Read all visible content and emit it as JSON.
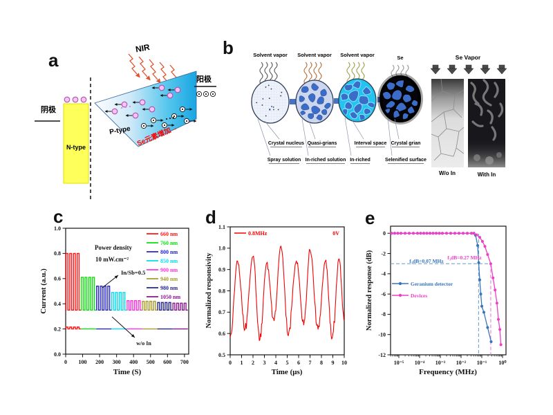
{
  "panel_letters": {
    "a": "a",
    "b": "b",
    "c": "c",
    "d": "d",
    "e": "e"
  },
  "panel_a": {
    "nir_label": "NIR",
    "anode_label": "阳极",
    "cathode_label": "阴极",
    "n_type_label": "N-type",
    "p_type_label": "P-type",
    "se_gradient_label": "Se元素增加→",
    "colors": {
      "n_type_fill": "#ffff5c",
      "wedge_end": "#18a6e2",
      "nir_arrow": "#e0522a",
      "hole_fill": "#f6c4f4",
      "annotation_red": "#ff0000"
    }
  },
  "panel_b": {
    "stages": [
      {
        "vapor_label": "Solvent vapor",
        "top_label": "Crystal nucleus",
        "bottom_label": "Spray solution"
      },
      {
        "vapor_label": "Solvent vapor",
        "top_label": "Quasi-grians",
        "bottom_label": "In-riched solution"
      },
      {
        "vapor_label": "Solvent vapor",
        "top_label": "Interval space",
        "bottom_label": "In-riched"
      },
      {
        "vapor_label": "Se",
        "top_label": "Crystal grian",
        "bottom_label": "Selenified surface"
      }
    ],
    "se_vapor_title": "Se Vapor",
    "micrograph_labels": [
      "W/o In",
      "With In"
    ],
    "arrow_color": "#4472c4"
  },
  "chart_data": [
    {
      "id": "c",
      "type": "line",
      "xlabel": "Time (S)",
      "ylabel": "Current (a.u.)",
      "xlim": [
        0,
        725
      ],
      "ylim": [
        0,
        1.0
      ],
      "xticks": [
        0,
        100,
        200,
        300,
        400,
        500,
        600,
        700
      ],
      "yticks": [
        0.0,
        0.2,
        0.4,
        0.6,
        0.8,
        1.0
      ],
      "baseline_on": 0.35,
      "baseline_off": 0.2,
      "off_pulse_peak": 0.215,
      "window_s": 90,
      "pulse_period": 22,
      "pulse_on": 11,
      "pulse_offset": 2,
      "pulses_per_window": 4,
      "series": [
        {
          "label": "660 nm",
          "color": "#ff1212",
          "peak": 0.8
        },
        {
          "label": "760 nm",
          "color": "#0ae00a",
          "peak": 0.61
        },
        {
          "label": "800 nm",
          "color": "#2424cc",
          "peak": 0.54
        },
        {
          "label": "850 nm",
          "color": "#00dcf0",
          "peak": 0.49
        },
        {
          "label": "900 nm",
          "color": "#ff2ee0",
          "peak": 0.425
        },
        {
          "label": "940 nm",
          "color": "#a89a28",
          "peak": 0.42
        },
        {
          "label": "980 nm",
          "color": "#24248e",
          "peak": 0.41
        },
        {
          "label": "1050 nm",
          "color": "#8c1490",
          "peak": 0.405
        }
      ],
      "annotations": {
        "power_density_1": "Power density",
        "power_density_2": "10 mW.cm⁻²",
        "in_sb": "In/Sb=0.5",
        "wo_in": "w/o In"
      }
    },
    {
      "id": "d",
      "type": "line",
      "xlabel": "Time (μs)",
      "ylabel": "Normalized responsivity",
      "xlim": [
        0,
        10
      ],
      "ylim": [
        0.5,
        1.1
      ],
      "xticks": [
        0,
        1,
        2,
        3,
        4,
        5,
        6,
        7,
        8,
        9,
        10
      ],
      "yticks": [
        0.5,
        0.6,
        0.7,
        0.8,
        0.9,
        1.0,
        1.1
      ],
      "legend_label": "0.8MHz",
      "bias_label": "0V",
      "color": "#f20000",
      "extrema_t": [
        0,
        0.65,
        1.3,
        2.0,
        2.6,
        3.2,
        3.85,
        4.45,
        5.1,
        5.8,
        6.45,
        7.0,
        7.7,
        8.35,
        8.95,
        9.55,
        10
      ],
      "extrema_v": [
        0.58,
        0.94,
        0.62,
        0.96,
        0.57,
        0.93,
        0.66,
        1.01,
        0.59,
        0.94,
        0.64,
        0.99,
        0.62,
        0.94,
        0.58,
        0.95,
        0.66
      ],
      "noise": 0.013
    },
    {
      "id": "e",
      "type": "line",
      "xscale": "log",
      "xlabel": "Frequency (MHz)",
      "ylabel": "Normalized response (dB)",
      "yticks": [
        0,
        -2,
        -4,
        -6,
        -8,
        -10,
        -12
      ],
      "xticks_log": [
        -5,
        -4,
        -3,
        -2,
        -1,
        0
      ],
      "xtick_labels": [
        "10⁻⁵",
        "10⁻⁴",
        "10⁻³",
        "10⁻²",
        "10⁻¹",
        "10⁰"
      ],
      "flat_log": [
        -5.35,
        -5.2,
        -5.05,
        -4.9,
        -4.7,
        -4.5,
        -4.3,
        -4.1,
        -3.95,
        -3.8,
        -3.65,
        -3.5,
        -3.35,
        -3.2,
        -3.05,
        -2.9,
        -2.7,
        -2.5,
        -2.3,
        -2.1,
        -1.9,
        -1.7,
        -1.5,
        -1.38
      ],
      "series": [
        {
          "name": "Geranium detector",
          "color": "#3575bd",
          "drop_log_db": [
            [
              -1.3,
              -0.2
            ],
            [
              -1.2,
              -1.2
            ],
            [
              -1.15,
              -2.9
            ],
            [
              -1.1,
              -4.6
            ],
            [
              -1.05,
              -6.0
            ],
            [
              -1.0,
              -7.2
            ],
            [
              -0.9,
              -7.8
            ],
            [
              -0.72,
              -9.3
            ],
            [
              -0.55,
              -10.7
            ]
          ]
        },
        {
          "name": "Devices",
          "color": "#ee3fc8",
          "drop_log_db": [
            [
              -1.25,
              -0.15
            ],
            [
              -1.1,
              -0.4
            ],
            [
              -0.97,
              -0.8
            ],
            [
              -0.85,
              -1.3
            ],
            [
              -0.72,
              -2.1
            ],
            [
              -0.57,
              -3.0
            ],
            [
              -0.46,
              -4.4
            ],
            [
              -0.36,
              -5.6
            ],
            [
              -0.27,
              -6.9
            ],
            [
              -0.2,
              -8.5
            ],
            [
              -0.13,
              -9.5
            ],
            [
              -0.08,
              -11.0
            ]
          ]
        }
      ],
      "f3db": [
        0.07,
        0.27
      ],
      "dash_db": -3,
      "annotations": [
        {
          "text": "f₃dB=0.07 MHz",
          "color": "#3575bd"
        },
        {
          "text": "f₃dB=0.27 MHz",
          "color": "#ee3fc8"
        }
      ]
    }
  ]
}
